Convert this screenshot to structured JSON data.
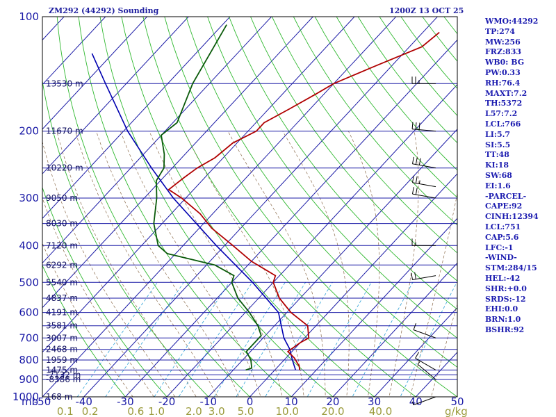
{
  "header": {
    "station": "ZM292 (44292) Sounding",
    "time": "1200Z 13 OCT 25"
  },
  "side_panel": [
    "WMO:44292",
    "TP:274",
    "MW:256",
    "FRZ:833",
    "WB0: BG",
    "PW:0.33",
    "RH:76.4",
    "MAXT:7.2",
    "TH:5372",
    "L57:7.2",
    "LCL:766",
    "LI:5.7",
    "SI:5.5",
    "TT:48",
    "KI:18",
    "SW:68",
    "EI:1.6",
    "-PARCEL-",
    "CAPE:92",
    "CINH:12394",
    "LCL:751",
    "CAP:5.6",
    "LFC:-1",
    "-WIND-",
    "STM:284/15",
    "HEL:-42",
    "SHR:+0.0",
    "SRDS:-12",
    "EHI:0.0",
    "BRN:1.0",
    "BSHR:92"
  ],
  "colors": {
    "frame": "#000000",
    "isobar": "#1a1aa6",
    "isotherm": "#1a1aa6",
    "dry_adiabat": "#2fb82f",
    "moist_adiabat": "#8a6a4a",
    "mixing_ratio": "#2aa0d6",
    "temperature": "#b00000",
    "dewpoint": "#0a5a0a",
    "parcel": "#0000b0",
    "axis_text": "#1a1aa6",
    "mix_text": "#9a9a3a"
  },
  "chart_data": {
    "type": "skew-t",
    "title": "ZM292 (44292) Sounding 1200Z 13 OCT 25",
    "pressure_range_mb": [
      1000,
      100
    ],
    "temperature_range_c": [
      -50,
      50
    ],
    "y_axis_unit": "mb",
    "x_axis_unit": "C",
    "mixing_ratio_unit": "g/kg",
    "pressure_ticks": [
      {
        "label": "100",
        "p": 100
      },
      {
        "label": "200",
        "p": 200
      },
      {
        "label": "300",
        "p": 300
      },
      {
        "label": "400",
        "p": 400
      },
      {
        "label": "500",
        "p": 500
      },
      {
        "label": "600",
        "p": 600
      },
      {
        "label": "700",
        "p": 700
      },
      {
        "label": "800",
        "p": 800
      },
      {
        "label": "900",
        "p": 900
      },
      {
        "label": "1000",
        "p": 1000
      }
    ],
    "temperature_ticks": [
      {
        "label": "-50",
        "t": -50
      },
      {
        "label": "-40",
        "t": -40
      },
      {
        "label": "-30",
        "t": -30
      },
      {
        "label": "-20",
        "t": -20
      },
      {
        "label": "-10",
        "t": -10
      },
      {
        "label": "0",
        "t": 0
      },
      {
        "label": "10",
        "t": 10
      },
      {
        "label": "20",
        "t": 20
      },
      {
        "label": "30",
        "t": 30
      },
      {
        "label": "40",
        "t": 40
      },
      {
        "label": "50",
        "t": 50
      }
    ],
    "mixing_ratio_labels": [
      {
        "label": "0.1",
        "t": -44.5
      },
      {
        "label": "0.2",
        "t": -38.5
      },
      {
        "label": "0.6",
        "t": -27.5
      },
      {
        "label": "1.0",
        "t": -22.5
      },
      {
        "label": "2.0",
        "t": -13.5
      },
      {
        "label": "3.0",
        "t": -8.0
      },
      {
        "label": "5.0",
        "t": -1.0
      },
      {
        "label": "10.0",
        "t": 9.0
      },
      {
        "label": "20.0",
        "t": 20.0
      },
      {
        "label": "40.0",
        "t": 31.5
      }
    ],
    "height_labels": [
      {
        "label": "13530 m",
        "p": 150
      },
      {
        "label": "11670 m",
        "p": 200
      },
      {
        "label": "10220 m",
        "p": 250
      },
      {
        "label": "9050 m",
        "p": 300
      },
      {
        "label": "8030 m",
        "p": 350
      },
      {
        "label": "7120 m",
        "p": 400
      },
      {
        "label": "6292 m",
        "p": 450
      },
      {
        "label": "5540 m",
        "p": 500
      },
      {
        "label": "4837 m",
        "p": 550
      },
      {
        "label": "4191 m",
        "p": 600
      },
      {
        "label": "3581 m",
        "p": 650
      },
      {
        "label": "3007 m",
        "p": 700
      },
      {
        "label": "2468 m",
        "p": 750
      },
      {
        "label": "1959 m",
        "p": 800
      },
      {
        "label": "1475 m",
        "p": 850
      },
      {
        "label": "-7132 m",
        "p": 875
      },
      {
        "label": "-8386 m",
        "p": 900
      },
      {
        "label": "168 m",
        "p": 1000
      }
    ],
    "temperature_profile": [
      [
        110,
        -36
      ],
      [
        120,
        -37
      ],
      [
        135,
        -44
      ],
      [
        150,
        -50
      ],
      [
        160,
        -52
      ],
      [
        175,
        -55
      ],
      [
        190,
        -58
      ],
      [
        200,
        -58
      ],
      [
        215,
        -61
      ],
      [
        235,
        -62
      ],
      [
        250,
        -64
      ],
      [
        265,
        -65
      ],
      [
        285,
        -66
      ],
      [
        300,
        -61
      ],
      [
        330,
        -53
      ],
      [
        360,
        -47
      ],
      [
        400,
        -38
      ],
      [
        440,
        -30
      ],
      [
        480,
        -21
      ],
      [
        500,
        -20
      ],
      [
        550,
        -15
      ],
      [
        600,
        -9
      ],
      [
        650,
        -2
      ],
      [
        700,
        1
      ],
      [
        720,
        0
      ],
      [
        760,
        -1
      ],
      [
        790,
        2
      ],
      [
        830,
        5
      ],
      [
        850,
        6
      ]
    ],
    "dewpoint_profile": [
      [
        105,
        -89
      ],
      [
        150,
        -84
      ],
      [
        190,
        -79
      ],
      [
        205,
        -80
      ],
      [
        230,
        -75
      ],
      [
        250,
        -72
      ],
      [
        270,
        -71
      ],
      [
        300,
        -67
      ],
      [
        350,
        -62
      ],
      [
        400,
        -56
      ],
      [
        420,
        -52
      ],
      [
        450,
        -38
      ],
      [
        480,
        -31
      ],
      [
        500,
        -30
      ],
      [
        550,
        -25
      ],
      [
        600,
        -19
      ],
      [
        650,
        -14
      ],
      [
        690,
        -11
      ],
      [
        720,
        -11
      ],
      [
        760,
        -11
      ],
      [
        800,
        -8
      ],
      [
        840,
        -6
      ],
      [
        850,
        -7
      ]
    ],
    "parcel_profile": [
      [
        850,
        5
      ],
      [
        800,
        2
      ],
      [
        750,
        -1
      ],
      [
        700,
        -5
      ],
      [
        600,
        -12
      ],
      [
        500,
        -25
      ],
      [
        400,
        -42
      ],
      [
        300,
        -63
      ],
      [
        250,
        -75
      ],
      [
        200,
        -89
      ],
      [
        150,
        -105
      ],
      [
        125,
        -115
      ]
    ],
    "wind_barbs": [
      {
        "p": 150,
        "dir": 270,
        "spd": 25
      },
      {
        "p": 200,
        "dir": 275,
        "spd": 30
      },
      {
        "p": 250,
        "dir": 280,
        "spd": 30
      },
      {
        "p": 280,
        "dir": 280,
        "spd": 25
      },
      {
        "p": 300,
        "dir": 280,
        "spd": 20
      },
      {
        "p": 400,
        "dir": 270,
        "spd": 15
      },
      {
        "p": 480,
        "dir": 260,
        "spd": 20
      },
      {
        "p": 700,
        "dir": 290,
        "spd": 10
      },
      {
        "p": 850,
        "dir": 300,
        "spd": 10
      },
      {
        "p": 900,
        "dir": 310,
        "spd": 5
      },
      {
        "p": 1000,
        "dir": 250,
        "spd": 5
      }
    ],
    "corner_labels": {
      "pressure_unit": "mb",
      "mixing_unit": "g/kg"
    }
  }
}
